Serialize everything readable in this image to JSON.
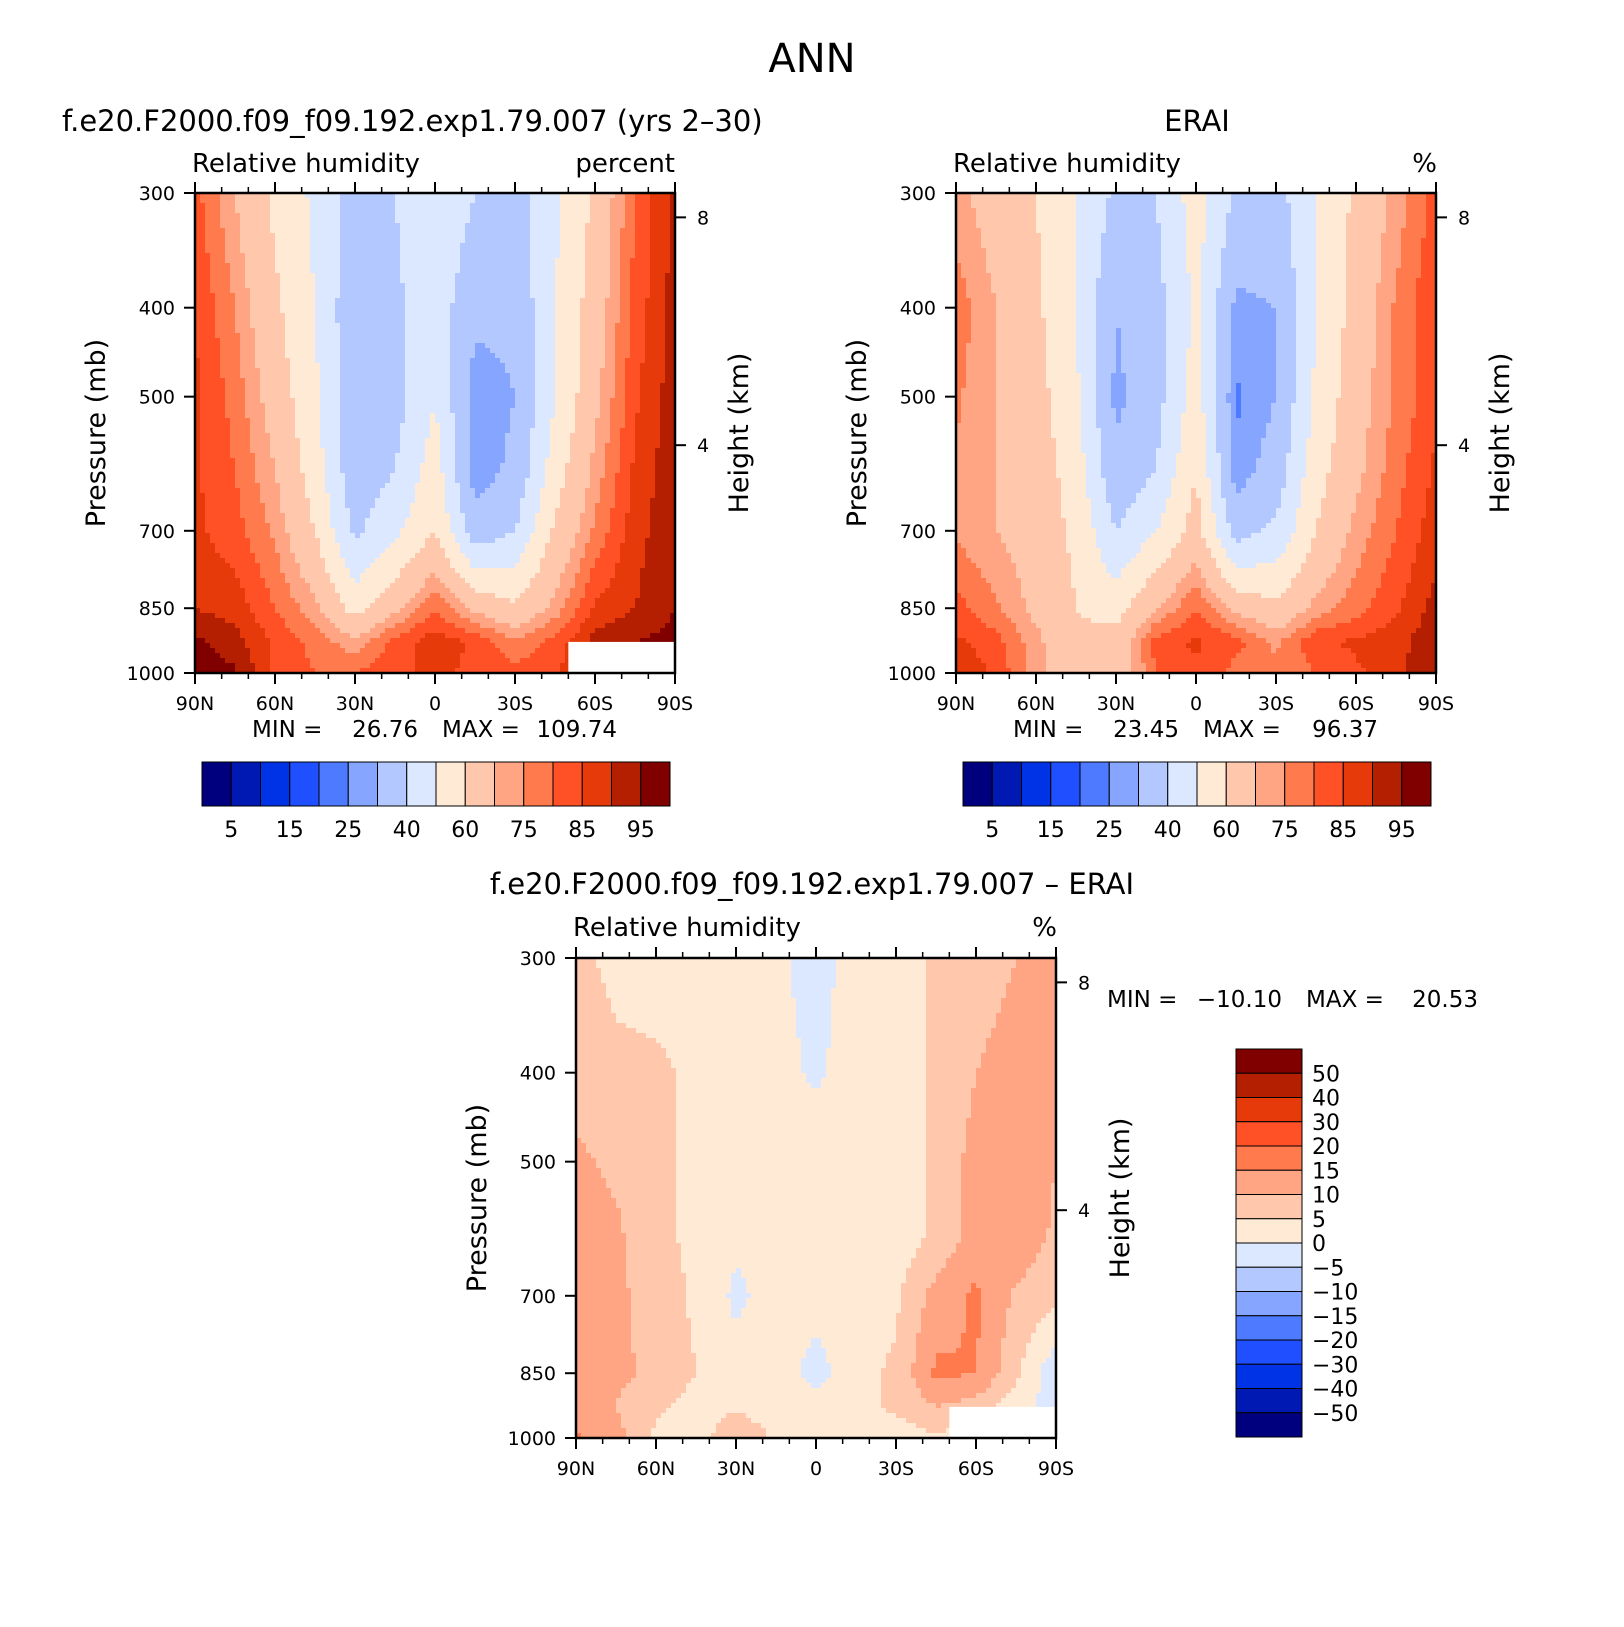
{
  "figure": {
    "season_title": "ANN"
  },
  "palette": {
    "rh": [
      "#00007f",
      "#0019b3",
      "#0033e6",
      "#1f4fff",
      "#4d7aff",
      "#85a5ff",
      "#b3c8ff",
      "#dbe8ff",
      "#ffead6",
      "#ffc8ad",
      "#ffa583",
      "#ff7a4d",
      "#ff5026",
      "#e63a0b",
      "#b31f00",
      "#800000"
    ],
    "diff": [
      "#00007f",
      "#0019b3",
      "#0033e6",
      "#1f4fff",
      "#4d7aff",
      "#85a5ff",
      "#b3c8ff",
      "#dbe8ff",
      "#ffead6",
      "#ffc8ad",
      "#ffa583",
      "#ff7a4d",
      "#ff5026",
      "#e63a0b",
      "#b31f00",
      "#800000"
    ]
  },
  "chart_data": [
    {
      "type": "heatmap",
      "panel_title": "f.e20.F2000.f09_f09.192.exp1.79.007 (yrs 2–30)",
      "variable": "Relative humidity",
      "units": "percent",
      "ylabel": "Pressure (mb)",
      "ylabel_right": "Height (km)",
      "x_ticks": [
        "90N",
        "60N",
        "30N",
        "0",
        "30S",
        "60S",
        "90S"
      ],
      "y_ticks": [
        "300",
        "400",
        "500",
        "700",
        "850",
        "1000"
      ],
      "y_ticks_right": [
        "8",
        "4"
      ],
      "min_label": "MIN =",
      "min_value": "26.76",
      "max_label": "MAX =",
      "max_value": "109.74",
      "colorbar_labels": [
        "5",
        "15",
        "25",
        "40",
        "60",
        "75",
        "85",
        "95"
      ],
      "lat_range": [
        90,
        -90
      ],
      "pressure_range": [
        300,
        1000
      ],
      "levels": [
        5,
        10,
        15,
        20,
        25,
        30,
        40,
        50,
        60,
        70,
        75,
        80,
        85,
        90,
        95
      ],
      "pressure_levels": [
        300,
        400,
        500,
        600,
        700,
        850,
        925,
        1000
      ],
      "latitudes": [
        90,
        75,
        60,
        45,
        30,
        15,
        0,
        -15,
        -30,
        -45,
        -60,
        -75,
        -90
      ],
      "values": [
        [
          82,
          70,
          58,
          48,
          36,
          40,
          48,
          40,
          36,
          48,
          62,
          80,
          92
        ],
        [
          85,
          75,
          62,
          50,
          32,
          38,
          46,
          32,
          32,
          50,
          65,
          82,
          92
        ],
        [
          86,
          78,
          66,
          52,
          32,
          36,
          50,
          26,
          30,
          50,
          68,
          84,
          93
        ],
        [
          86,
          80,
          70,
          55,
          33,
          40,
          55,
          26,
          32,
          55,
          72,
          86,
          94
        ],
        [
          86,
          82,
          74,
          60,
          38,
          48,
          60,
          34,
          40,
          62,
          76,
          88,
          94
        ],
        [
          90,
          88,
          80,
          72,
          56,
          68,
          80,
          68,
          62,
          72,
          86,
          90,
          95
        ],
        [
          96,
          92,
          84,
          78,
          72,
          82,
          88,
          84,
          76,
          82,
          92,
          95,
          97
        ],
        [
          98,
          96,
          84,
          80,
          80,
          84,
          86,
          84,
          82,
          84,
          92,
          96,
          98
        ]
      ],
      "missing_region": {
        "lat": [
          -50,
          -90
        ],
        "pressure": [
          925,
          1000
        ]
      }
    },
    {
      "type": "heatmap",
      "panel_title": "ERAI",
      "variable": "Relative humidity",
      "units": "%",
      "ylabel": "Pressure (mb)",
      "ylabel_right": "Height (km)",
      "x_ticks": [
        "90N",
        "60N",
        "30N",
        "0",
        "30S",
        "60S",
        "90S"
      ],
      "y_ticks": [
        "300",
        "400",
        "500",
        "700",
        "850",
        "1000"
      ],
      "y_ticks_right": [
        "8",
        "4"
      ],
      "min_label": "MIN =",
      "min_value": "23.45",
      "max_label": "MAX =",
      "max_value": "96.37",
      "colorbar_labels": [
        "5",
        "15",
        "25",
        "40",
        "60",
        "75",
        "85",
        "95"
      ],
      "lat_range": [
        90,
        -90
      ],
      "pressure_range": [
        300,
        1000
      ],
      "levels": [
        5,
        10,
        15,
        20,
        25,
        30,
        40,
        50,
        60,
        70,
        75,
        80,
        85,
        90,
        95
      ],
      "pressure_levels": [
        300,
        400,
        500,
        600,
        700,
        850,
        925,
        1000
      ],
      "latitudes": [
        90,
        75,
        60,
        45,
        30,
        15,
        0,
        -15,
        -30,
        -45,
        -60,
        -75,
        -90
      ],
      "values": [
        [
          72,
          66,
          60,
          50,
          38,
          40,
          55,
          38,
          36,
          50,
          62,
          72,
          82
        ],
        [
          78,
          70,
          62,
          50,
          30,
          36,
          52,
          28,
          30,
          50,
          64,
          76,
          85
        ],
        [
          76,
          70,
          64,
          52,
          28,
          36,
          55,
          24,
          30,
          52,
          66,
          76,
          84
        ],
        [
          74,
          70,
          66,
          55,
          32,
          40,
          60,
          26,
          34,
          56,
          68,
          78,
          86
        ],
        [
          74,
          70,
          66,
          58,
          40,
          50,
          64,
          36,
          42,
          60,
          72,
          80,
          88
        ],
        [
          82,
          76,
          68,
          60,
          56,
          70,
          80,
          68,
          62,
          72,
          78,
          84,
          92
        ],
        [
          86,
          82,
          72,
          62,
          64,
          82,
          86,
          82,
          74,
          84,
          86,
          88,
          94
        ],
        [
          90,
          84,
          72,
          62,
          62,
          80,
          84,
          78,
          76,
          80,
          84,
          88,
          95
        ]
      ]
    },
    {
      "type": "heatmap",
      "panel_title": "f.e20.F2000.f09_f09.192.exp1.79.007 – ERAI",
      "variable": "Relative humidity",
      "units": "%",
      "ylabel": "Pressure (mb)",
      "ylabel_right": "Height (km)",
      "x_ticks": [
        "90N",
        "60N",
        "30N",
        "0",
        "30S",
        "60S",
        "90S"
      ],
      "y_ticks": [
        "300",
        "400",
        "500",
        "700",
        "850",
        "1000"
      ],
      "y_ticks_right": [
        "8",
        "4"
      ],
      "min_label": "MIN =",
      "min_value": "−10.10",
      "max_label": "MAX =",
      "max_value": "20.53",
      "colorbar_labels": [
        "50",
        "40",
        "30",
        "20",
        "15",
        "10",
        "5",
        "0",
        "−5",
        "−10",
        "−15",
        "−20",
        "−30",
        "−40",
        "−50"
      ],
      "lat_range": [
        90,
        -90
      ],
      "pressure_range": [
        300,
        1000
      ],
      "levels": [
        -50,
        -40,
        -30,
        -20,
        -15,
        -10,
        -5,
        0,
        5,
        10,
        15,
        20,
        30,
        40,
        50
      ],
      "pressure_levels": [
        300,
        400,
        500,
        600,
        700,
        850,
        925,
        1000
      ],
      "latitudes": [
        90,
        75,
        60,
        45,
        30,
        15,
        0,
        -15,
        -30,
        -45,
        -60,
        -75,
        -90
      ],
      "values": [
        [
          6,
          4,
          3,
          2,
          2,
          1,
          -2,
          2,
          2,
          6,
          8,
          10,
          12
        ],
        [
          8,
          6,
          6,
          4,
          2,
          2,
          -1,
          3,
          2,
          6,
          10,
          12,
          10
        ],
        [
          11,
          9,
          6,
          4,
          2,
          2,
          4,
          3,
          2,
          6,
          12,
          14,
          10
        ],
        [
          12,
          11,
          6,
          4,
          1,
          2,
          4,
          3,
          2,
          6,
          12,
          14,
          9
        ],
        [
          12,
          11,
          8,
          4,
          -1,
          2,
          2,
          3,
          4,
          12,
          16,
          9,
          6
        ],
        [
          10,
          11,
          9,
          5,
          2,
          3,
          -2,
          3,
          6,
          16,
          15,
          6,
          -4
        ],
        [
          12,
          10,
          6,
          3,
          4,
          2,
          2,
          3,
          6,
          10,
          8,
          2,
          -2
        ],
        [
          16,
          12,
          4,
          2,
          10,
          4,
          1,
          1,
          2,
          4,
          2,
          2,
          1
        ]
      ],
      "missing_region": {
        "lat": [
          -50,
          -90
        ],
        "pressure": [
          925,
          1000
        ]
      }
    }
  ]
}
